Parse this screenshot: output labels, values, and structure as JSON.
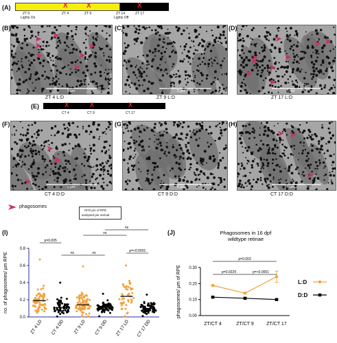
{
  "panel_labels": [
    "(A)",
    "(B)",
    "(C)",
    "(D)",
    "(E)",
    "(F)",
    "(G)",
    "(H)",
    "(I)",
    "(J)"
  ],
  "timeline_ld": {
    "ticks": [
      "ZT 0",
      "ZT 4",
      "ZT 9",
      "ZT 14",
      "ZT 17"
    ],
    "sub": [
      "Lights On",
      "Lights Off"
    ],
    "light_color": "#f5ee10",
    "dark_color": "#000000",
    "mark_color": "#e0222a"
  },
  "timeline_dd": {
    "ticks": [
      "CT 4",
      "CT 9",
      "CT 17"
    ]
  },
  "images_top": [
    {
      "caption": "ZT 4 L:D",
      "scalebar": "5 µm"
    },
    {
      "caption": "ZT 9 L:D",
      "scalebar": "5 µm"
    },
    {
      "caption": "ZT 17 L:D",
      "scalebar": "5 µm"
    }
  ],
  "images_bottom": [
    {
      "caption": "CT 4 D:D",
      "scalebar": "5 µm"
    },
    {
      "caption": "CT 9 D:D",
      "scalebar": "5 µm"
    },
    {
      "caption": "CT 17 D:D",
      "scalebar": "5 µm"
    }
  ],
  "legend": {
    "phagosomes": "phagosomes",
    "note_line1": ">570 µm of RPE",
    "note_line2": "analysed per animal",
    "marker_color": "#c9306e"
  },
  "chart_data": [
    {
      "type": "scatter",
      "ylabel": "no. of phagosomes/ µm RPE",
      "ylim": [
        0,
        0.8
      ],
      "yticks": [
        "0.0",
        "0.2",
        "0.4",
        "0.6",
        "0.8"
      ],
      "categories": [
        "ZT 4 LD",
        "CT 4 DD",
        "ZT 9 LD",
        "CT 9 DD",
        "ZT 17 LD",
        "CT 17 DD"
      ],
      "colors": [
        "#f2a33a",
        "#000000",
        "#f2a33a",
        "#000000",
        "#f2a33a",
        "#000000"
      ],
      "means": [
        0.19,
        0.11,
        0.14,
        0.11,
        0.24,
        0.1
      ],
      "sd": [
        0.12,
        0.08,
        0.11,
        0.06,
        0.16,
        0.06
      ],
      "max": [
        0.67,
        0.4,
        0.59,
        0.27,
        0.6,
        0.26
      ],
      "counts": [
        70,
        60,
        85,
        70,
        48,
        65
      ],
      "comparisons": [
        {
          "from": 0,
          "to": 1,
          "label": "p=0.005"
        },
        {
          "from": 1,
          "to": 2,
          "label": "ns"
        },
        {
          "from": 2,
          "to": 3,
          "label": "ns"
        },
        {
          "from": 4,
          "to": 5,
          "label": "p=<0.0001"
        },
        {
          "from": 2,
          "to": 4,
          "label": "ns"
        },
        {
          "from": 3,
          "to": 5,
          "label": "ns"
        }
      ]
    },
    {
      "type": "line",
      "title": "Phagosomes in 16 dpf",
      "subtitle": "wildtype retinae",
      "ylabel": "phagosomes/ µm of RPE",
      "ylim": [
        0,
        0.3
      ],
      "yticks": [
        "0.00",
        "0.10",
        "0.20",
        "0.30"
      ],
      "categories": [
        "ZT/CT 4",
        "ZT/CT 9",
        "ZT/CT 17"
      ],
      "series": [
        {
          "name": "L:D",
          "color": "#f2a33a",
          "values": [
            0.188,
            0.14,
            0.243
          ],
          "err": [
            0.004,
            0.004,
            0.035
          ]
        },
        {
          "name": "D:D",
          "color": "#000000",
          "values": [
            0.115,
            0.108,
            0.1
          ],
          "err": [
            0.004,
            0.006,
            0.004
          ]
        }
      ],
      "comparisons": [
        {
          "from": 0,
          "to": 1,
          "label": "p=0.0229"
        },
        {
          "from": 1,
          "to": 2,
          "label": "p=<0.0001"
        },
        {
          "from": 0,
          "to": 2,
          "label": "p=0.003"
        }
      ]
    }
  ]
}
